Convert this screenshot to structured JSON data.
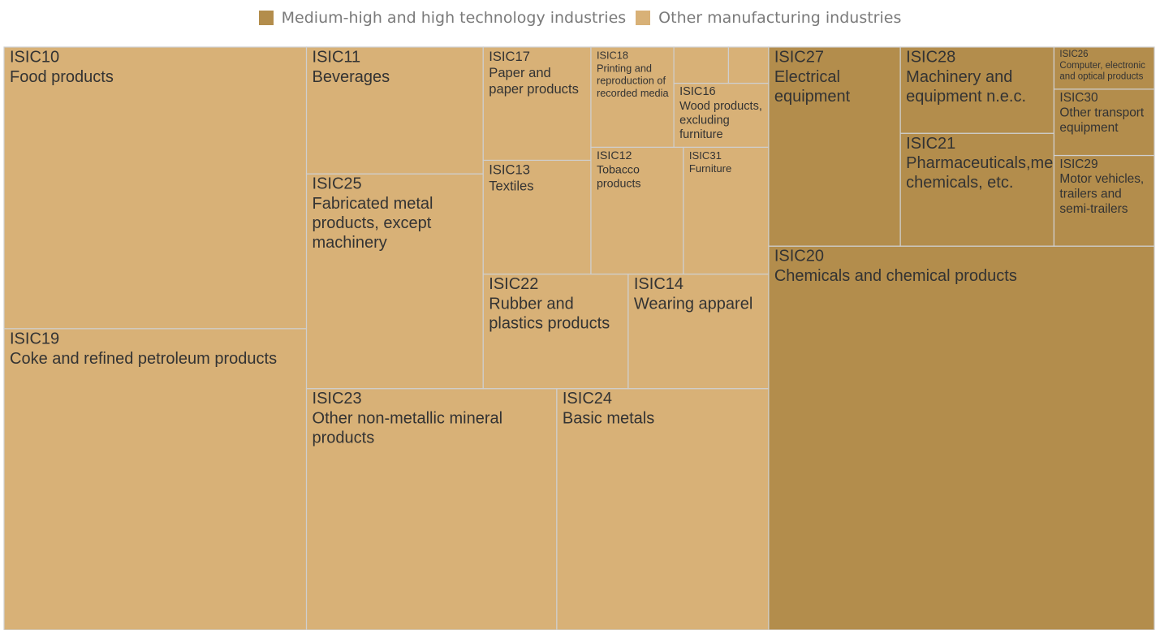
{
  "chart_data": {
    "type": "treemap",
    "legend_position": "top",
    "border_color": "#cfcfcf",
    "groups": [
      {
        "name": "Medium-high and high technology industries",
        "color": "#b38d4c",
        "items": [
          {
            "code": "ISIC20",
            "name": "Chemicals and chemical products",
            "value": 224.7
          },
          {
            "code": "ISIC27",
            "name": "Electrical equipment",
            "value": 39.8
          },
          {
            "code": "ISIC21",
            "name": "Pharmaceuticals,medicinal chemicals, etc.",
            "value": 26.3
          },
          {
            "code": "ISIC28",
            "name": "Machinery and equipment n.e.c.",
            "value": 20.1
          },
          {
            "code": "ISIC29",
            "name": "Motor vehicles, trailers and semi-trailers",
            "value": 13.8
          },
          {
            "code": "ISIC30",
            "name": "Other transport equipment",
            "value": 10.1
          },
          {
            "code": "ISIC26",
            "name": "Computer, electronic and optical products",
            "value": 6.4
          }
        ]
      },
      {
        "name": "Other manufacturing industries",
        "color": "#d8b177",
        "items": [
          {
            "code": "ISIC19",
            "name": "Coke and refined petroleum products",
            "value": 138.3
          },
          {
            "code": "ISIC10",
            "name": "Food products",
            "value": 129.2
          },
          {
            "code": "ISIC23",
            "name": "Other non-metallic mineral products",
            "value": 91.7
          },
          {
            "code": "ISIC24",
            "name": "Basic metals",
            "value": 77.6
          },
          {
            "code": "ISIC25",
            "name": "Fabricated metal products, except machinery",
            "value": 57.6
          },
          {
            "code": "ISIC11",
            "name": "Beverages",
            "value": 34.0
          },
          {
            "code": "ISIC22",
            "name": "Rubber and plastics products",
            "value": 25.2
          },
          {
            "code": "ISIC14",
            "name": "Wearing apparel",
            "value": 24.4
          },
          {
            "code": "ISIC13",
            "name": "Textiles",
            "value": 18.6
          },
          {
            "code": "ISIC17",
            "name": "Paper and paper products",
            "value": 18.5
          },
          {
            "code": "ISIC12",
            "name": "Tobacco products",
            "value": 17.8
          },
          {
            "code": "ISIC31",
            "name": "Furniture",
            "value": 16.4
          },
          {
            "code": "ISIC18",
            "name": "Printing and reproduction of recorded media",
            "value": 12.6
          },
          {
            "code": "ISIC16",
            "name": "Wood products, excluding furniture",
            "value": 9.2
          },
          {
            "code": null,
            "name": null,
            "value": 3.0
          },
          {
            "code": null,
            "name": null,
            "value": 2.2
          }
        ]
      }
    ]
  }
}
